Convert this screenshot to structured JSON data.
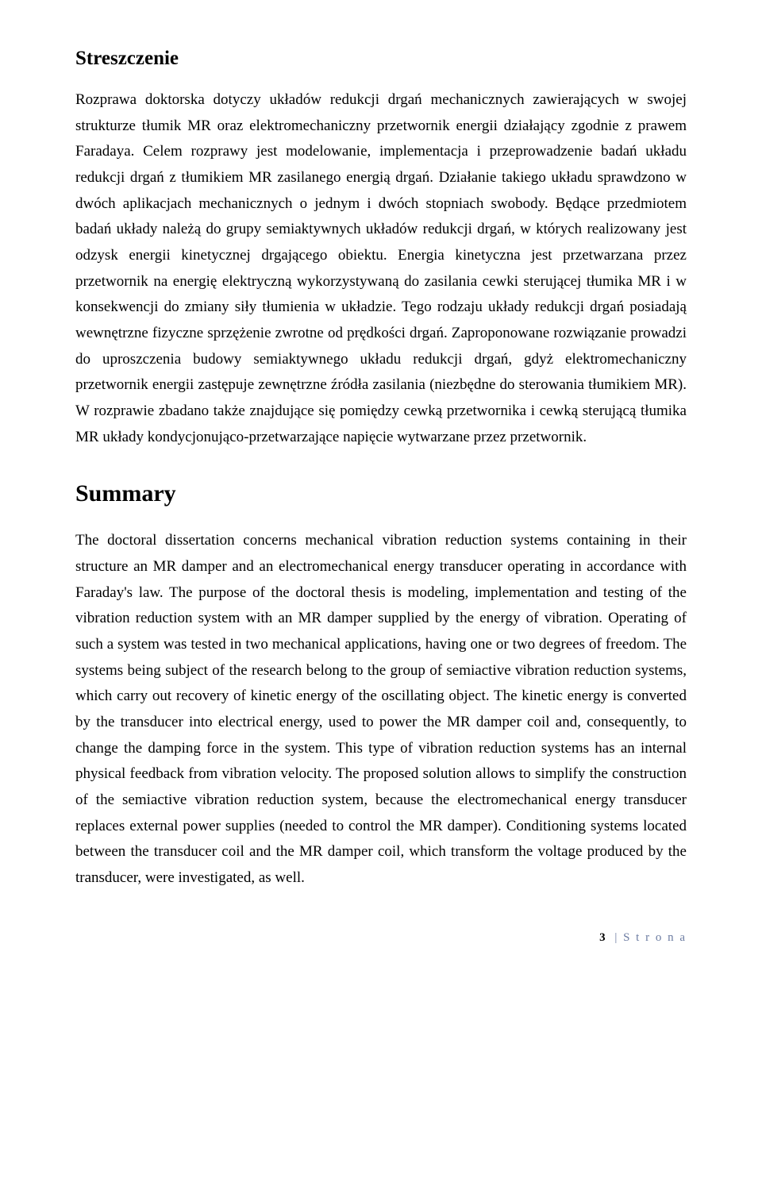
{
  "document": {
    "heading1": "Streszczenie",
    "paragraph1": "Rozprawa doktorska dotyczy układów redukcji drgań mechanicznych zawierających w swojej strukturze tłumik MR oraz elektromechaniczny przetwornik energii działający zgodnie z prawem Faradaya. Celem rozprawy jest modelowanie, implementacja i przeprowadzenie badań układu redukcji drgań z tłumikiem MR zasilanego energią drgań. Działanie takiego układu sprawdzono w dwóch aplikacjach mechanicznych o jednym i dwóch stopniach swobody. Będące przedmiotem badań układy należą do grupy semiaktywnych układów redukcji drgań, w których realizowany jest odzysk energii kinetycznej drgającego obiektu. Energia kinetyczna jest przetwarzana przez przetwornik na energię elektryczną wykorzystywaną do zasilania cewki sterującej tłumika MR i w konsekwencji do zmiany siły tłumienia w układzie. Tego rodzaju układy redukcji drgań posiadają wewnętrzne fizyczne sprzężenie zwrotne od prędkości drgań. Zaproponowane rozwiązanie prowadzi do uproszczenia budowy semiaktywnego układu redukcji drgań, gdyż elektromechaniczny przetwornik energii zastępuje zewnętrzne źródła zasilania (niezbędne do sterowania tłumikiem MR). W rozprawie zbadano także znajdujące się pomiędzy cewką przetwornika i cewką sterującą tłumika MR układy kondycjonująco-przetwarzające napięcie wytwarzane przez przetwornik.",
    "heading2": "Summary",
    "paragraph2": "The doctoral dissertation concerns mechanical vibration reduction systems containing in their structure an MR damper and an electromechanical energy transducer operating in accordance with Faraday's law. The purpose of the doctoral thesis is modeling, implementation and testing of the vibration reduction system with an MR damper supplied by the energy of vibration. Operating of such a system was tested in two mechanical applications, having one or two degrees of freedom. The systems being subject of the research belong to the group of semiactive vibration reduction systems, which carry out recovery of kinetic energy of the oscillating object. The kinetic energy is converted by the transducer into electrical energy, used to power the MR damper coil and, consequently, to change the damping force in the system. This type of vibration reduction systems has an internal physical feedback from vibration velocity. The proposed solution allows to simplify the construction of the semiactive vibration reduction system, because the electromechanical energy transducer replaces external power supplies (needed to control the MR damper). Conditioning systems located between the transducer coil and the MR damper coil,  which transform the voltage produced by the transducer, were investigated, as well.",
    "footer": {
      "page_number": "3",
      "page_label": "| S t r o n a"
    }
  },
  "style": {
    "font_family": "Times New Roman",
    "body_font_size_pt": 12,
    "heading1_font_size_pt": 16,
    "heading2_font_size_pt": 20,
    "text_color": "#000000",
    "background_color": "#ffffff",
    "footer_color": "#6b7ba1",
    "line_height": 1.72,
    "text_align": "justify"
  }
}
